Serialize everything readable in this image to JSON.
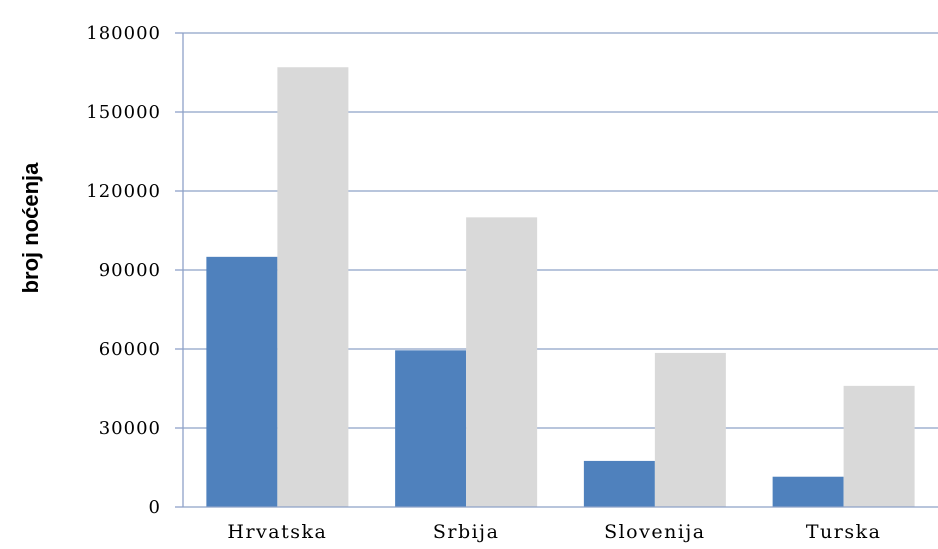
{
  "chart_data": {
    "type": "bar",
    "ylabel": "broj noćenja",
    "xlabel": "",
    "categories": [
      "Hrvatska",
      "Srbija",
      "Slovenija",
      "Turska"
    ],
    "series": [
      {
        "values": [
          95000,
          59500,
          17500,
          11500
        ],
        "color": "#4f81bd"
      },
      {
        "values": [
          167000,
          110000,
          58500,
          46000
        ],
        "color": "#d9d9d9"
      }
    ],
    "ylim": [
      0,
      180000
    ],
    "yticks": [
      "0",
      "30000",
      "60000",
      "90000",
      "120000",
      "150000",
      "180000"
    ],
    "legend": "none",
    "grid": true,
    "gridline_color": "#8ea2c8"
  }
}
